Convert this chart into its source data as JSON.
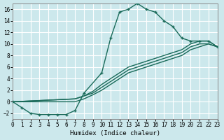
{
  "xlabel": "Humidex (Indice chaleur)",
  "background_color": "#cce8ec",
  "line_color": "#1a6b5a",
  "grid_color": "#b8d8dc",
  "xlim": [
    0,
    23
  ],
  "ylim": [
    -3,
    17
  ],
  "xticks": [
    0,
    1,
    2,
    3,
    4,
    5,
    6,
    7,
    8,
    9,
    10,
    11,
    12,
    13,
    14,
    15,
    16,
    17,
    18,
    19,
    20,
    21,
    22,
    23
  ],
  "yticks": [
    -2,
    0,
    2,
    4,
    6,
    8,
    10,
    12,
    14,
    16
  ],
  "curve_x": [
    0,
    1,
    2,
    3,
    4,
    5,
    6,
    7,
    8,
    10,
    11,
    12,
    13,
    14,
    15,
    16,
    17,
    18,
    19,
    20,
    21,
    22,
    23
  ],
  "curve_y": [
    0,
    -1,
    -2,
    -2.2,
    -2.2,
    -2.2,
    -2.2,
    -1.5,
    1.5,
    5,
    11,
    15.5,
    16,
    17,
    16,
    15.5,
    14,
    13,
    11,
    10.5,
    10.5,
    10.5,
    9.5
  ],
  "diag1_x": [
    0,
    7,
    8,
    9,
    10,
    11,
    12,
    13,
    14,
    15,
    16,
    17,
    18,
    19,
    20,
    21,
    22,
    23
  ],
  "diag1_y": [
    0,
    0.5,
    1,
    1.5,
    2.5,
    3.5,
    4.5,
    5.5,
    6,
    6.5,
    7,
    7.5,
    8,
    8.5,
    9.5,
    10,
    10,
    9.5
  ],
  "diag2_x": [
    0,
    7,
    8,
    9,
    10,
    11,
    12,
    13,
    14,
    15,
    16,
    17,
    18,
    19,
    20,
    21,
    22,
    23
  ],
  "diag2_y": [
    0,
    0.5,
    1,
    1.8,
    3,
    4,
    5,
    6,
    6.5,
    7,
    7.5,
    8,
    8.5,
    9,
    10,
    10.5,
    10.5,
    9.5
  ],
  "diag3_x": [
    0,
    7,
    8,
    9,
    10,
    11,
    12,
    13,
    14,
    15,
    16,
    17,
    18,
    19,
    20,
    21,
    22,
    23
  ],
  "diag3_y": [
    0,
    0,
    0.5,
    1.2,
    2,
    3,
    4,
    5,
    5.5,
    6,
    6.5,
    7,
    7.5,
    8,
    9,
    9.5,
    10,
    9.5
  ]
}
